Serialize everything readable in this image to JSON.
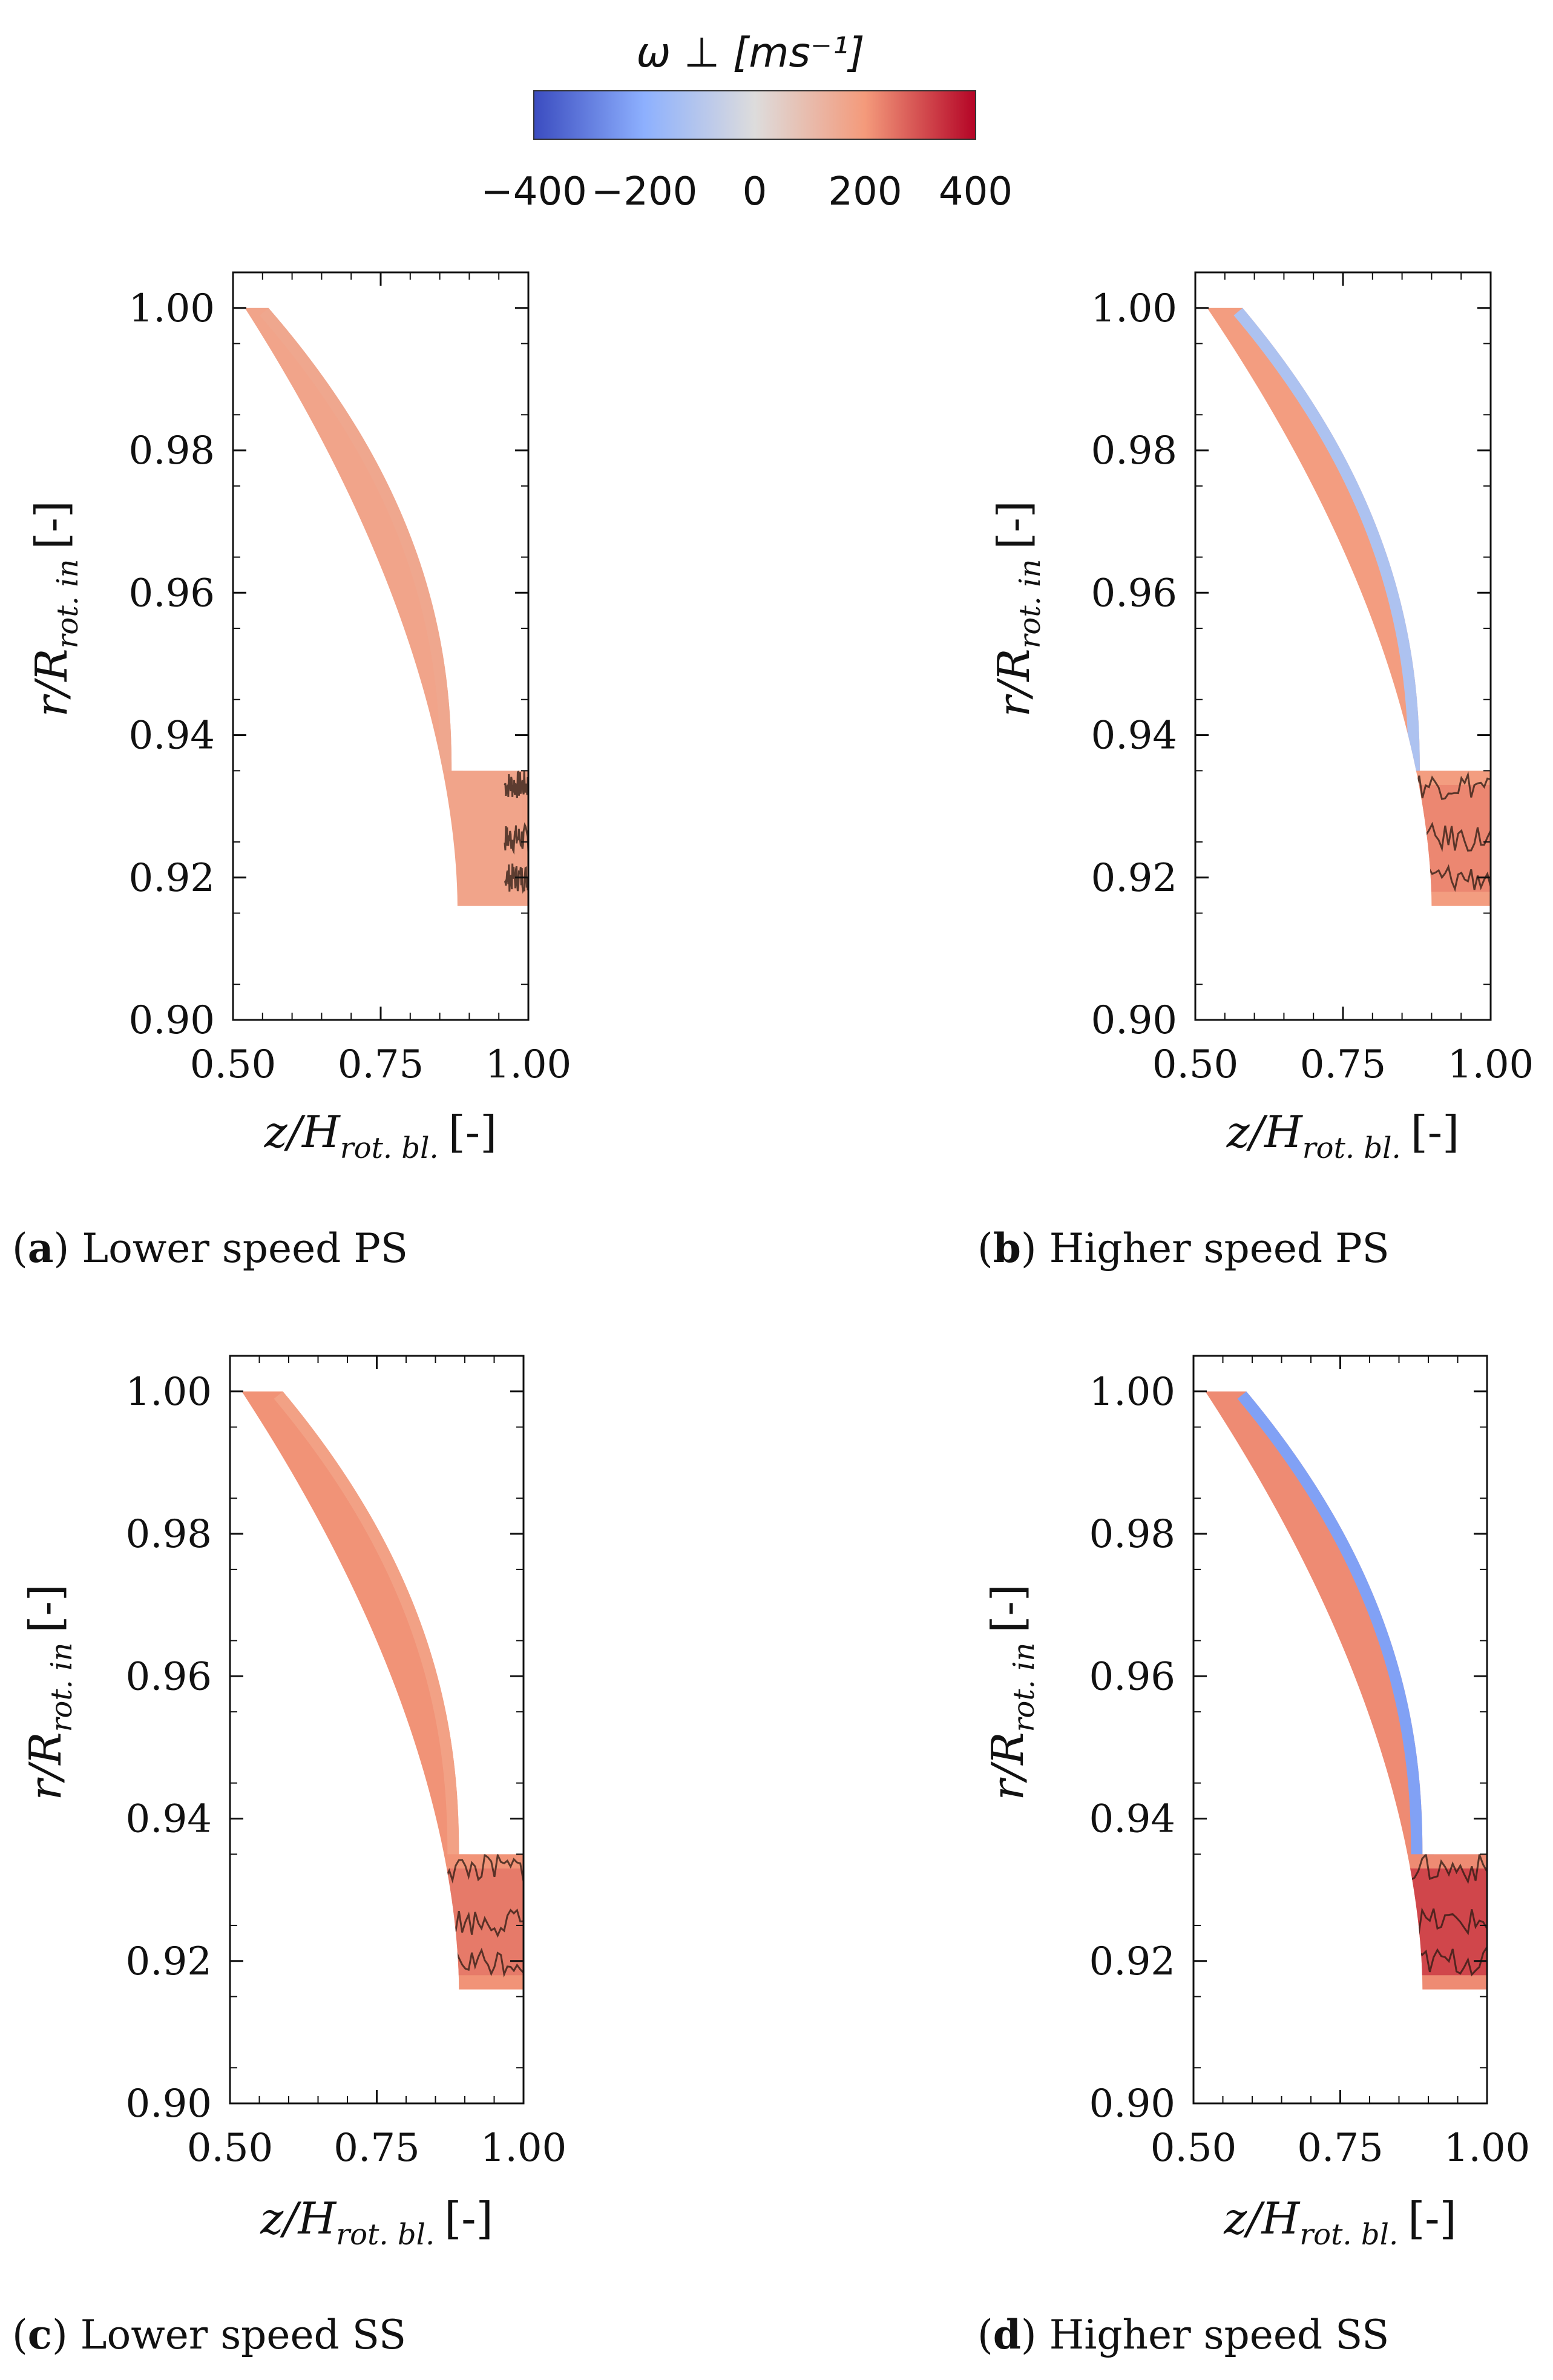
{
  "colorbar": {
    "title": "ω ⊥ [ms⁻¹]",
    "min": -400,
    "max": 400,
    "ticks": [
      "−400",
      "−200",
      "0",
      "200",
      "400"
    ],
    "colors": [
      "#3b4cc0",
      "#8db0fe",
      "#dddcdc",
      "#f49a7b",
      "#b40426"
    ]
  },
  "chart_data": [
    {
      "type": "heatmap",
      "caption_letter": "a",
      "caption_text": "Lower speed PS",
      "xlabel": "z/H",
      "xlabel_sub": "rot. bl.",
      "xlabel_unit": "[-]",
      "ylabel": "r/R",
      "ylabel_sub": "rot. in",
      "ylabel_unit": "[-]",
      "xlim": [
        0.5,
        1.0
      ],
      "ylim": [
        0.9,
        1.005
      ],
      "xticks": [
        "0.50",
        "0.75",
        "1.00"
      ],
      "yticks": [
        "0.90",
        "0.92",
        "0.94",
        "0.96",
        "0.98",
        "1.00"
      ],
      "region": {
        "z_start": 0.52,
        "tip_width": 0.04,
        "plateau_z": 0.87,
        "plateau_top": 0.935,
        "plateau_bottom": 0.916,
        "bottom_curve_z": 0.88
      },
      "omega_main": 170,
      "omega_band": 160,
      "omega_core": 175,
      "contour_zone": [
        0.96,
        1.0
      ]
    },
    {
      "type": "heatmap",
      "caption_letter": "b",
      "caption_text": "Higher speed PS",
      "xlabel": "z/H",
      "xlabel_sub": "rot. bl.",
      "xlabel_unit": "[-]",
      "ylabel": "r/R",
      "ylabel_sub": "rot. in",
      "ylabel_unit": "[-]",
      "xlim": [
        0.5,
        1.0
      ],
      "ylim": [
        0.9,
        1.005
      ],
      "xticks": [
        "0.50",
        "0.75",
        "1.00"
      ],
      "yticks": [
        "0.90",
        "0.92",
        "0.94",
        "0.96",
        "0.98",
        "1.00"
      ],
      "region": {
        "z_start": 0.52,
        "tip_width": 0.06,
        "plateau_z": 0.88,
        "plateau_top": 0.935,
        "plateau_bottom": 0.916,
        "bottom_curve_z": 0.9
      },
      "omega_main": 190,
      "omega_band": -120,
      "omega_core": 230,
      "contour_zone": [
        0.78,
        1.0
      ]
    },
    {
      "type": "heatmap",
      "caption_letter": "c",
      "caption_text": "Lower speed SS",
      "xlabel": "z/H",
      "xlabel_sub": "rot. bl.",
      "xlabel_unit": "[-]",
      "ylabel": "r/R",
      "ylabel_sub": "rot. in",
      "ylabel_unit": "[-]",
      "xlim": [
        0.5,
        1.0
      ],
      "ylim": [
        0.9,
        1.005
      ],
      "xticks": [
        "0.50",
        "0.75",
        "1.00"
      ],
      "yticks": [
        "0.90",
        "0.92",
        "0.94",
        "0.96",
        "0.98",
        "1.00"
      ],
      "region": {
        "z_start": 0.52,
        "tip_width": 0.07,
        "plateau_z": 0.89,
        "plateau_top": 0.935,
        "plateau_bottom": 0.916,
        "bottom_curve_z": 0.89
      },
      "omega_main": 210,
      "omega_band": 180,
      "omega_core": 250,
      "contour_zone": [
        0.78,
        1.0
      ]
    },
    {
      "type": "heatmap",
      "caption_letter": "d",
      "caption_text": "Higher speed SS",
      "xlabel": "z/H",
      "xlabel_sub": "rot. bl.",
      "xlabel_unit": "[-]",
      "ylabel": "r/R",
      "ylabel_sub": "rot. in",
      "ylabel_unit": "[-]",
      "xlim": [
        0.5,
        1.0
      ],
      "ylim": [
        0.9,
        1.005
      ],
      "xticks": [
        "0.50",
        "0.75",
        "1.00"
      ],
      "yticks": [
        "0.90",
        "0.92",
        "0.94",
        "0.96",
        "0.98",
        "1.00"
      ],
      "region": {
        "z_start": 0.52,
        "tip_width": 0.07,
        "plateau_z": 0.89,
        "plateau_top": 0.935,
        "plateau_bottom": 0.916,
        "bottom_curve_z": 0.89
      },
      "omega_main": 220,
      "omega_band": -230,
      "omega_core": 330,
      "contour_zone": [
        0.74,
        1.0
      ]
    }
  ]
}
